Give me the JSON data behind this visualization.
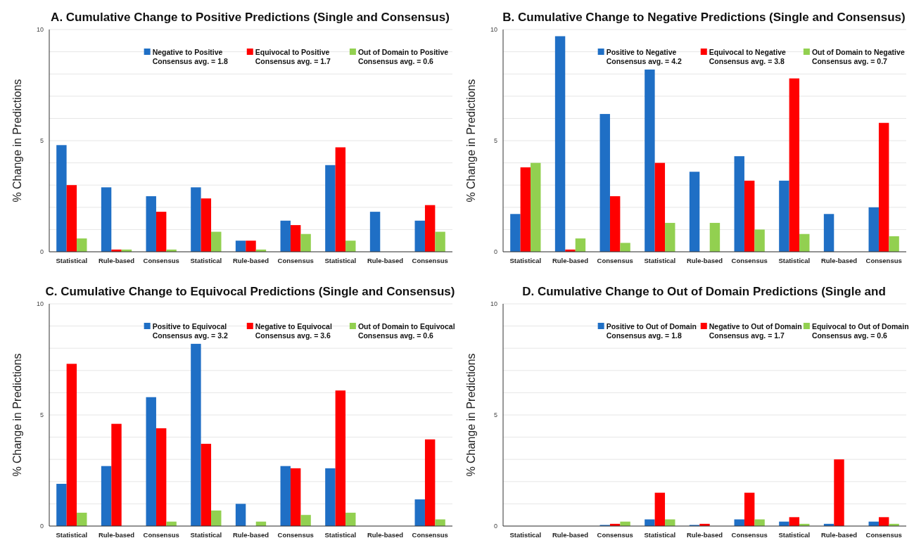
{
  "chart_data": [
    {
      "type": "bar",
      "title": "A. Cumulative Change to Positive Predictions (Single and Consensus)",
      "ylabel": "% Change in Predictions",
      "categories": [
        "Statistical",
        "Rule-based",
        "Consensus",
        "Statistical",
        "Rule-based",
        "Consensus",
        "Statistical",
        "Rule-based",
        "Consensus"
      ],
      "series": [
        {
          "name": "Negative to Positive",
          "color": "#1f6fc5",
          "values": [
            4.8,
            2.9,
            2.5,
            2.9,
            0.5,
            1.4,
            3.9,
            1.8,
            1.4
          ]
        },
        {
          "name": "Equivocal to Positive",
          "color": "#ff0000",
          "values": [
            3.0,
            0.1,
            1.8,
            2.4,
            0.5,
            1.2,
            4.7,
            0,
            2.1
          ]
        },
        {
          "name": "Out of Domain to Positive",
          "color": "#92d050",
          "values": [
            0.6,
            0.1,
            0.1,
            0.9,
            0.1,
            0.8,
            0.5,
            0,
            0.9
          ]
        }
      ],
      "annotations": [
        "Consensus avg. = 1.8",
        "Consensus avg. = 1.7",
        "Consensus avg. = 0.6"
      ],
      "ylim": [
        0,
        10
      ],
      "yticks": [
        0,
        {
          "value": 1,
          "label": null
        },
        {
          "value": 2,
          "label": null
        },
        {
          "value": 3,
          "label": null
        },
        {
          "value": 4,
          "label": null
        },
        5,
        {
          "value": 6,
          "label": null
        },
        {
          "value": 7,
          "label": null
        },
        {
          "value": 8,
          "label": null
        },
        {
          "value": 9,
          "label": null
        },
        10
      ],
      "grid": "y",
      "legend": "top"
    },
    {
      "type": "bar",
      "title": "B. Cumulative Change to Negative Predictions (Single and Consensus)",
      "ylabel": "% Change in Predictions",
      "categories": [
        "Statistical",
        "Rule-based",
        "Consensus",
        "Statistical",
        "Rule-based",
        "Consensus",
        "Statistical",
        "Rule-based",
        "Consensus"
      ],
      "series": [
        {
          "name": "Positive to Negative",
          "color": "#1f6fc5",
          "values": [
            1.7,
            9.7,
            6.2,
            8.2,
            3.6,
            4.3,
            3.2,
            1.7,
            2.0
          ]
        },
        {
          "name": "Equivocal to Negative",
          "color": "#ff0000",
          "values": [
            3.8,
            0.1,
            2.5,
            4.0,
            0,
            3.2,
            7.8,
            0,
            5.8
          ]
        },
        {
          "name": "Out of Domain to Negative",
          "color": "#92d050",
          "values": [
            4.0,
            0.6,
            0.4,
            1.3,
            1.3,
            1.0,
            0.8,
            0,
            0.7
          ]
        }
      ],
      "annotations": [
        "Consensus avg. = 4.2",
        "Consensus avg. = 3.8",
        "Consensus avg. = 0.7"
      ],
      "ylim": [
        0,
        10
      ],
      "yticks": [
        0,
        {
          "value": 1,
          "label": null
        },
        {
          "value": 2,
          "label": null
        },
        {
          "value": 3,
          "label": null
        },
        {
          "value": 4,
          "label": null
        },
        5,
        {
          "value": 6,
          "label": null
        },
        {
          "value": 7,
          "label": null
        },
        {
          "value": 8,
          "label": null
        },
        {
          "value": 9,
          "label": null
        },
        10
      ],
      "grid": "y",
      "legend": "top"
    },
    {
      "type": "bar",
      "title": "C. Cumulative Change to Equivocal Predictions (Single and Consensus)",
      "ylabel": "% Change in Predictions",
      "categories": [
        "Statistical",
        "Rule-based",
        "Consensus",
        "Statistical",
        "Rule-based",
        "Consensus",
        "Statistical",
        "Rule-based",
        "Consensus"
      ],
      "series": [
        {
          "name": "Positive to Equivocal",
          "color": "#1f6fc5",
          "values": [
            1.9,
            2.7,
            5.8,
            8.2,
            1.0,
            2.7,
            2.6,
            0,
            1.2
          ]
        },
        {
          "name": "Negative to Equivocal",
          "color": "#ff0000",
          "values": [
            7.3,
            4.6,
            4.4,
            3.7,
            0,
            2.6,
            6.1,
            0,
            3.9
          ]
        },
        {
          "name": "Out of Domain to Equivocal",
          "color": "#92d050",
          "values": [
            0.6,
            0,
            0.2,
            0.7,
            0.2,
            0.5,
            0.6,
            0,
            0.3
          ]
        }
      ],
      "annotations": [
        "Consensus avg. = 3.2",
        "Consensus avg. = 3.6",
        "Consensus avg. = 0.6"
      ],
      "ylim": [
        0,
        10
      ],
      "yticks": [
        0,
        {
          "value": 1,
          "label": null
        },
        {
          "value": 2,
          "label": null
        },
        {
          "value": 3,
          "label": null
        },
        {
          "value": 4,
          "label": null
        },
        5,
        {
          "value": 6,
          "label": null
        },
        {
          "value": 7,
          "label": null
        },
        {
          "value": 8,
          "label": null
        },
        {
          "value": 9,
          "label": null
        },
        10
      ],
      "grid": "y",
      "legend": "top"
    },
    {
      "type": "bar",
      "title": "D. Cumulative Change to Out of Domain Predictions (Single and",
      "ylabel": "% Change in Predictions",
      "categories": [
        "Statistical",
        "Rule-based",
        "Consensus",
        "Statistical",
        "Rule-based",
        "Consensus",
        "Statistical",
        "Rule-based",
        "Consensus"
      ],
      "series": [
        {
          "name": "Positive to Out of Domain",
          "color": "#1f6fc5",
          "values": [
            0,
            0,
            0.05,
            0.3,
            0.05,
            0.3,
            0.2,
            0.1,
            0.2
          ]
        },
        {
          "name": "Negative to Out of Domain",
          "color": "#ff0000",
          "values": [
            0,
            0,
            0.1,
            1.5,
            0.1,
            1.5,
            0.4,
            3.0,
            0.4
          ]
        },
        {
          "name": "Equivocal to Out of Domain",
          "color": "#92d050",
          "values": [
            0,
            0,
            0.2,
            0.3,
            0,
            0.3,
            0.1,
            0,
            0.1
          ]
        }
      ],
      "annotations": [
        "Consensus avg. = 1.8",
        "Consensus avg. = 1.7",
        "Consensus avg. = 0.6"
      ],
      "ylim": [
        0,
        10
      ],
      "yticks": [
        0,
        {
          "value": 1,
          "label": null
        },
        {
          "value": 2,
          "label": null
        },
        {
          "value": 3,
          "label": null
        },
        {
          "value": 4,
          "label": null
        },
        5,
        {
          "value": 6,
          "label": null
        },
        {
          "value": 7,
          "label": null
        },
        {
          "value": 8,
          "label": null
        },
        {
          "value": 9,
          "label": null
        },
        10
      ],
      "grid": "y",
      "legend": "top"
    }
  ]
}
